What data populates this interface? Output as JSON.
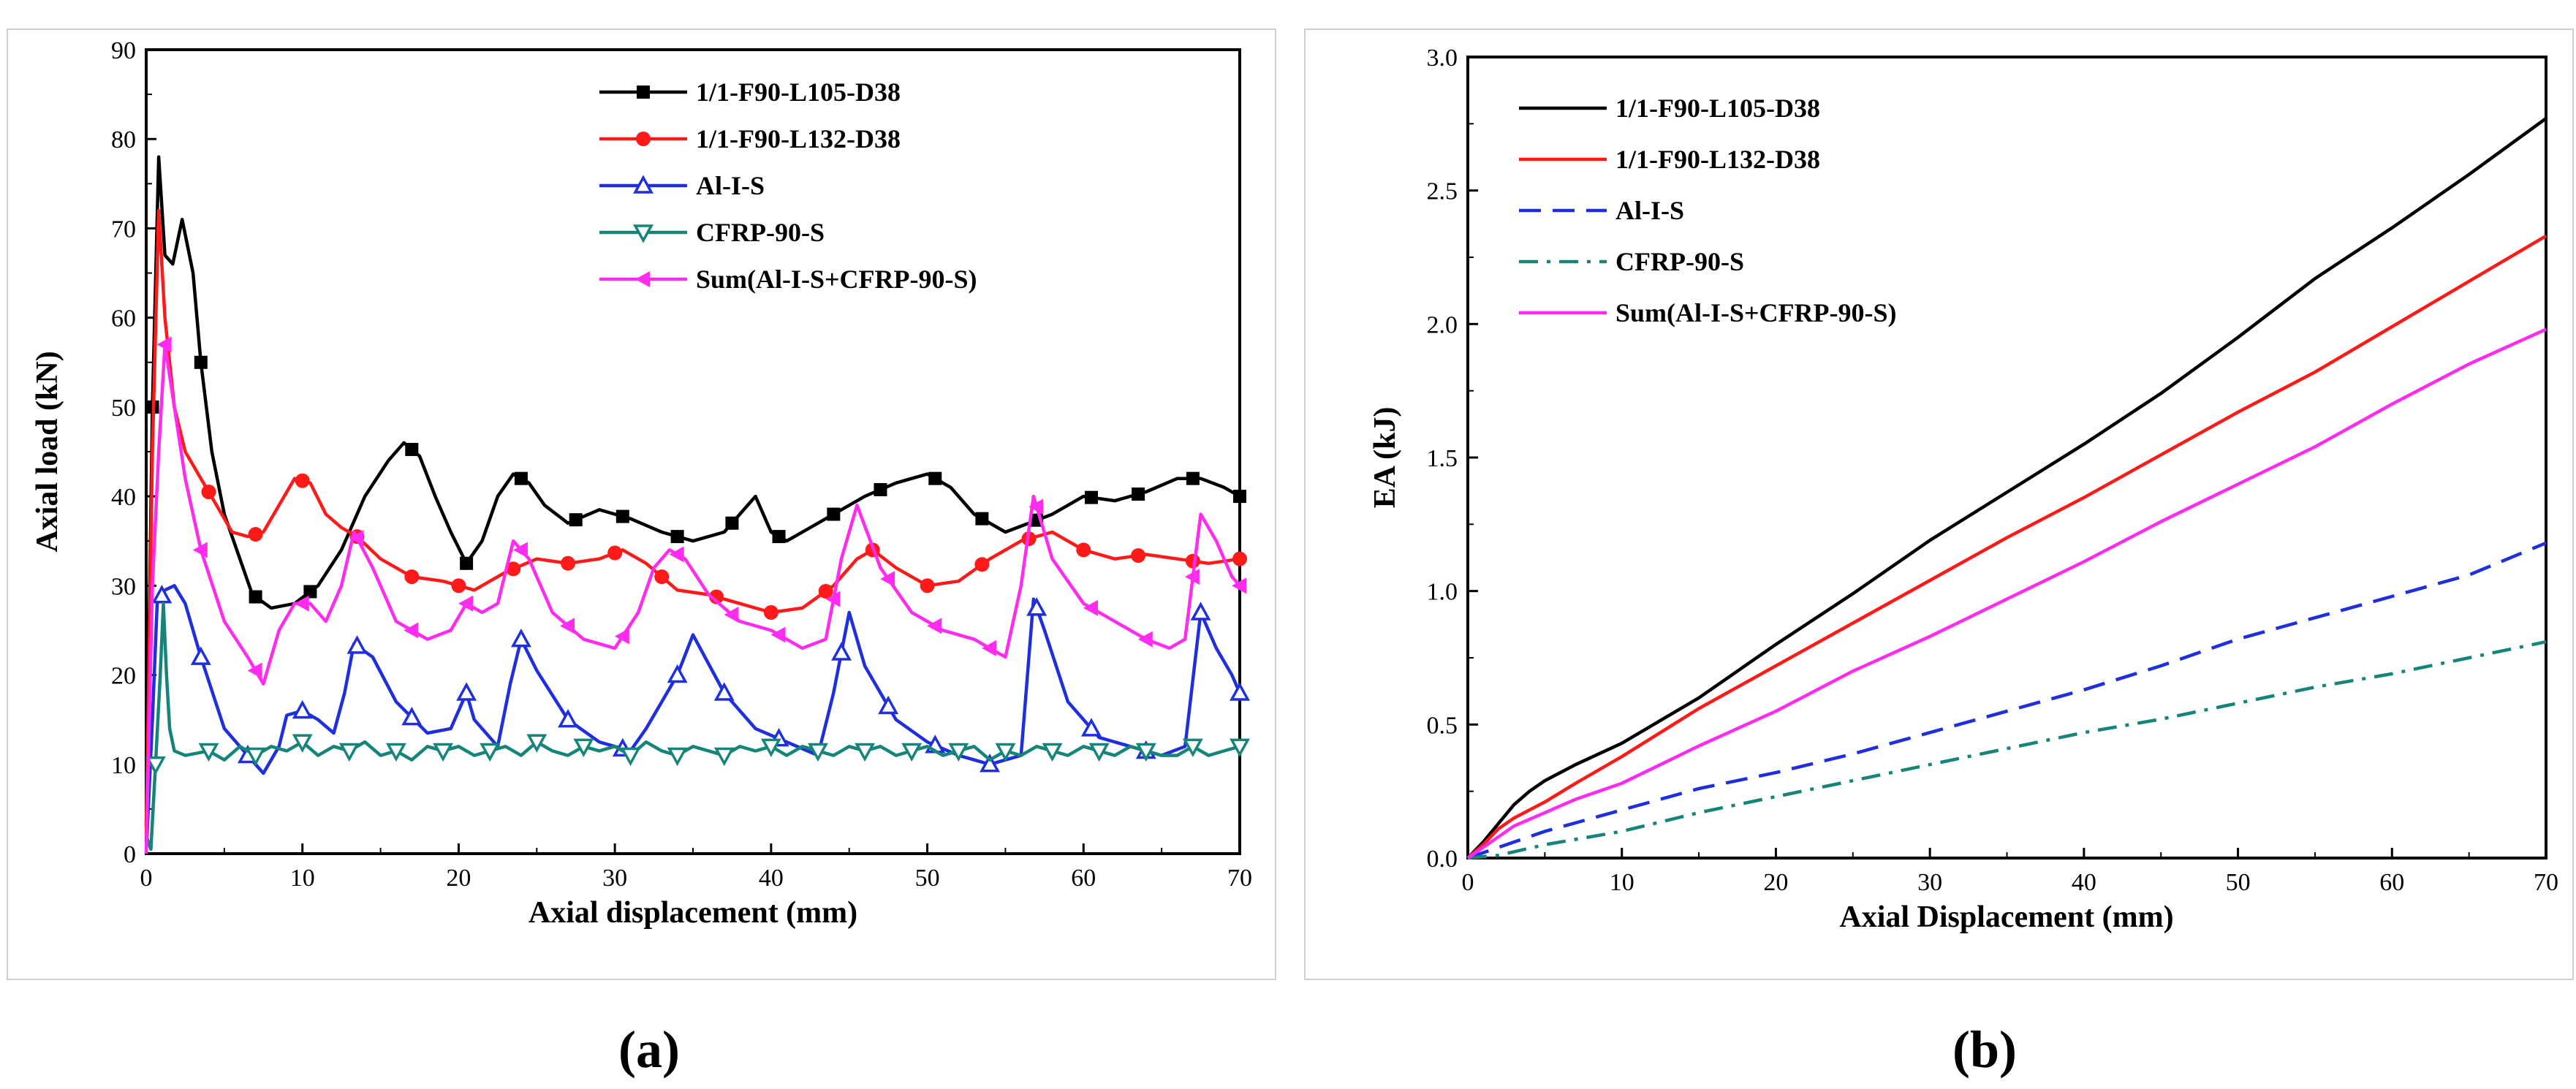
{
  "colors": {
    "black": "#000000",
    "red": "#ff1a1a",
    "blue": "#1f2fdd",
    "teal": "#15857a",
    "magenta": "#ff2cf0"
  },
  "chart_data": [
    {
      "type": "line",
      "caption": "(a)",
      "xlabel": "Axial displacement (mm)",
      "ylabel": "Axial load (kN)",
      "xlim": [
        0,
        70
      ],
      "ylim": [
        0,
        90
      ],
      "xticks": [
        "0",
        "10",
        "20",
        "30",
        "40",
        "50",
        "60",
        "70"
      ],
      "yticks": [
        "0",
        "10",
        "20",
        "30",
        "40",
        "50",
        "60",
        "70",
        "80",
        "90"
      ],
      "legend_position": "top-right",
      "series": [
        {
          "name": "1/1-F90-L105-D38",
          "color": "#000000",
          "marker": "square",
          "x": [
            0,
            0.4,
            0.8,
            1.2,
            1.7,
            2.3,
            3.0,
            3.5,
            4.2,
            5.0,
            6.0,
            6.8,
            8.0,
            9.5,
            11.0,
            12.5,
            14.0,
            15.5,
            16.5,
            17.5,
            18.5,
            19.5,
            20.5,
            21.5,
            22.5,
            23.5,
            24.5,
            25.5,
            27.0,
            29.0,
            31.0,
            33.0,
            35.0,
            37.0,
            39.0,
            40.0,
            41.0,
            42.5,
            44.0,
            46.0,
            48.0,
            50.0,
            51.5,
            53.0,
            55.0,
            56.5,
            58.0,
            60.0,
            62.0,
            64.0,
            66.0,
            67.5,
            69.0,
            70.0
          ],
          "y": [
            3,
            50,
            78,
            67,
            66,
            71,
            65,
            55,
            45,
            38,
            33,
            29,
            27.5,
            28,
            30,
            34,
            40,
            44,
            46,
            44.5,
            40,
            36,
            32.5,
            35,
            40,
            42.5,
            41.5,
            39,
            37,
            38.5,
            37.5,
            36,
            35,
            36,
            40,
            36,
            35,
            36.5,
            38,
            40,
            41.5,
            42.5,
            41,
            38,
            36,
            37,
            38,
            40,
            39.5,
            40.5,
            42,
            42,
            41,
            40
          ],
          "marker_x": [
            0.4,
            3.5,
            7.0,
            10.5,
            17.0,
            20.5,
            24.0,
            27.5,
            30.5,
            34.0,
            37.5,
            40.5,
            44.0,
            47.0,
            50.5,
            53.5,
            57.0,
            60.5,
            63.5,
            67.0,
            70.0
          ]
        },
        {
          "name": "1/1-F90-L132-D38",
          "color": "#ff1a1a",
          "marker": "circle",
          "x": [
            0,
            0.4,
            0.8,
            1.2,
            1.8,
            2.5,
            3.5,
            4.5,
            5.5,
            6.5,
            7.5,
            8.5,
            9.5,
            10.5,
            11.5,
            12.5,
            13.5,
            15.0,
            17.0,
            19.0,
            21.0,
            23.0,
            25.0,
            27.0,
            29.0,
            30.5,
            32.0,
            34.0,
            36.0,
            38.0,
            40.0,
            42.0,
            44.0,
            45.5,
            46.5,
            48.0,
            50.0,
            52.0,
            54.0,
            56.0,
            58.0,
            60.0,
            62.0,
            64.0,
            66.0,
            68.0,
            70.0
          ],
          "y": [
            2,
            45,
            72,
            60,
            50,
            45,
            42,
            39,
            36,
            35.5,
            36,
            39,
            42,
            41.5,
            38,
            36.5,
            35.5,
            33,
            31,
            30.5,
            29.5,
            31.5,
            33,
            32.5,
            33,
            34,
            32.5,
            29.5,
            29,
            28,
            27,
            27.5,
            30,
            33,
            34,
            32,
            30,
            30.5,
            33,
            35,
            36,
            34,
            33,
            33.5,
            33,
            32.5,
            33
          ],
          "marker_x": [
            4.0,
            7.0,
            10.0,
            13.5,
            17.0,
            20.0,
            23.5,
            27.0,
            30.0,
            33.0,
            36.5,
            40.0,
            43.5,
            46.5,
            50.0,
            53.5,
            56.5,
            60.0,
            63.5,
            67.0,
            70.0
          ]
        },
        {
          "name": "Al-I-S",
          "color": "#1f2fdd",
          "marker": "triangle-up",
          "x": [
            0,
            0.4,
            0.7,
            1.2,
            1.8,
            2.5,
            3.5,
            5.0,
            6.5,
            7.5,
            8.5,
            9.0,
            10.0,
            11.0,
            12.0,
            12.7,
            13.3,
            14.5,
            16.0,
            18.0,
            19.5,
            20.5,
            21.0,
            22.5,
            23.3,
            24.0,
            25.0,
            27.0,
            29.0,
            31.0,
            32.0,
            33.0,
            34.0,
            35.0,
            37.0,
            39.0,
            41.0,
            43.0,
            44.0,
            45.0,
            46.0,
            48.0,
            50.0,
            52.0,
            54.0,
            56.0,
            56.8,
            57.5,
            59.0,
            61.0,
            63.0,
            65.0,
            66.5,
            67.5,
            68.5,
            69.5,
            70.0
          ],
          "y": [
            0,
            15,
            28,
            29.5,
            30,
            28,
            22,
            14,
            11,
            9,
            12,
            15.5,
            16,
            15,
            13.5,
            18,
            23.5,
            22,
            17,
            13.5,
            14,
            18,
            15,
            12,
            19,
            24,
            20.5,
            15,
            12.5,
            11.5,
            14,
            17,
            20,
            24.5,
            18,
            14,
            12.5,
            11,
            18,
            27,
            21,
            15,
            12.5,
            11,
            10,
            11,
            28.5,
            25,
            17,
            13,
            12,
            11,
            12,
            27,
            23,
            20,
            18
          ],
          "marker_x": [
            1.0,
            3.5,
            6.5,
            10.0,
            13.5,
            17.0,
            20.5,
            24.0,
            27.0,
            30.5,
            34.0,
            37.0,
            40.5,
            44.5,
            47.5,
            50.5,
            54.0,
            57.0,
            60.5,
            64.0,
            67.5,
            70.0
          ]
        },
        {
          "name": "CFRP-90-S",
          "color": "#15857a",
          "marker": "triangle-down",
          "x": [
            0,
            0.3,
            0.6,
            0.9,
            1.1,
            1.3,
            1.5,
            1.8,
            2.5,
            4,
            5,
            6,
            7,
            8,
            9,
            10,
            11,
            12,
            13,
            14,
            15,
            16,
            17,
            18,
            19,
            20,
            21,
            22,
            23,
            24,
            25,
            26,
            27,
            28,
            29,
            30,
            31,
            32,
            33,
            34,
            35,
            36,
            37,
            38,
            39,
            40,
            41,
            42,
            43,
            44,
            45,
            46,
            47,
            48,
            49,
            50,
            51,
            52,
            53,
            54,
            55,
            56,
            57,
            58,
            59,
            60,
            61,
            62,
            63,
            64,
            65,
            66,
            67,
            68,
            69,
            70
          ],
          "y": [
            2,
            0.5,
            10,
            20,
            28,
            20,
            14,
            11.5,
            11,
            11.5,
            10.5,
            12,
            11,
            12,
            11.5,
            12.5,
            11,
            12,
            11.5,
            12.5,
            11,
            11.5,
            10.5,
            12,
            11.5,
            12,
            11,
            11.5,
            12,
            11,
            12.5,
            11.5,
            11,
            12,
            11.5,
            12,
            11,
            12.5,
            11.5,
            11,
            12,
            11.5,
            11,
            12,
            11.5,
            12,
            11,
            12,
            11.5,
            11,
            12,
            11.5,
            12,
            11,
            11.5,
            12,
            11,
            11.5,
            12,
            10.5,
            11.5,
            11,
            12,
            11.5,
            11,
            12,
            11.5,
            11,
            12,
            11.5,
            11,
            11,
            12,
            11,
            11.5,
            12
          ],
          "marker_x": [
            0.6,
            4.0,
            7.0,
            10.0,
            13.0,
            16.0,
            19.0,
            22.0,
            25.0,
            28.0,
            31.0,
            34.0,
            37.0,
            40.0,
            43.0,
            46.0,
            49.0,
            52.0,
            55.0,
            58.0,
            61.0,
            64.0,
            67.0,
            70.0
          ]
        },
        {
          "name": "Sum(Al-I-S+CFRP-90-S)",
          "color": "#ff2cf0",
          "marker": "triangle-left",
          "x": [
            0,
            0.4,
            0.8,
            1.2,
            1.8,
            2.5,
            3.5,
            5.0,
            6.5,
            7.5,
            8.5,
            9.5,
            10.5,
            11.5,
            12.5,
            13.3,
            14.5,
            16.0,
            18.0,
            19.5,
            20.5,
            21.5,
            22.5,
            23.5,
            24.5,
            26.0,
            28.0,
            30.0,
            31.5,
            32.5,
            33.5,
            34.5,
            36.0,
            38.0,
            40.0,
            42.0,
            43.5,
            44.5,
            45.5,
            47.0,
            49.0,
            51.0,
            53.0,
            55.0,
            56.0,
            56.8,
            58.0,
            60.0,
            62.0,
            64.0,
            65.5,
            66.5,
            67.5,
            68.5,
            69.5,
            70.0
          ],
          "y": [
            0,
            30,
            45,
            57,
            50,
            42,
            34,
            26,
            22,
            19,
            25,
            28,
            28,
            26,
            30,
            36,
            32,
            26,
            24,
            25,
            28,
            27,
            28,
            35,
            33,
            27,
            24,
            23,
            27,
            32,
            34,
            33,
            29,
            26,
            25,
            23,
            24,
            33,
            39,
            32,
            27,
            25,
            24,
            22,
            30,
            40,
            33,
            28,
            26,
            24,
            23,
            24,
            38,
            35,
            31,
            30
          ],
          "marker_x": [
            1.2,
            3.5,
            7.0,
            10.0,
            13.5,
            17.0,
            20.5,
            24.0,
            27.0,
            30.5,
            34.0,
            37.5,
            40.5,
            44.0,
            47.5,
            50.5,
            54.0,
            57.0,
            60.5,
            64.0,
            67.0,
            70.0
          ]
        }
      ]
    },
    {
      "type": "line",
      "caption": "(b)",
      "xlabel": "Axial Displacement (mm)",
      "ylabel": "EA (kJ)",
      "xlim": [
        0,
        70
      ],
      "ylim": [
        0,
        3.0
      ],
      "xticks": [
        "0",
        "10",
        "20",
        "30",
        "40",
        "50",
        "60",
        "70"
      ],
      "yticks": [
        "0.0",
        "0.5",
        "1.0",
        "1.5",
        "2.0",
        "2.5",
        "3.0"
      ],
      "legend_position": "top-left",
      "series": [
        {
          "name": "1/1-F90-L105-D38",
          "color": "#000000",
          "dash": "solid",
          "x": [
            0,
            1,
            2,
            3,
            4,
            5,
            7,
            10,
            15,
            20,
            25,
            30,
            35,
            40,
            45,
            50,
            55,
            60,
            65,
            70
          ],
          "y": [
            0,
            0.06,
            0.13,
            0.2,
            0.25,
            0.29,
            0.35,
            0.43,
            0.6,
            0.8,
            0.99,
            1.19,
            1.37,
            1.55,
            1.74,
            1.95,
            2.17,
            2.36,
            2.56,
            2.77
          ]
        },
        {
          "name": "1/1-F90-L132-D38",
          "color": "#ff1a1a",
          "dash": "solid",
          "x": [
            0,
            1,
            2,
            3,
            5,
            7,
            10,
            15,
            20,
            25,
            30,
            35,
            40,
            45,
            50,
            55,
            60,
            65,
            70
          ],
          "y": [
            0,
            0.05,
            0.11,
            0.15,
            0.21,
            0.28,
            0.38,
            0.56,
            0.72,
            0.88,
            1.04,
            1.2,
            1.35,
            1.51,
            1.67,
            1.82,
            1.99,
            2.16,
            2.33
          ]
        },
        {
          "name": "Al-I-S",
          "color": "#1f2fdd",
          "dash": "long-dash",
          "x": [
            0,
            2,
            5,
            10,
            15,
            20,
            25,
            30,
            35,
            40,
            45,
            50,
            55,
            60,
            65,
            70
          ],
          "y": [
            0,
            0.04,
            0.1,
            0.18,
            0.26,
            0.32,
            0.39,
            0.47,
            0.55,
            0.63,
            0.72,
            0.82,
            0.9,
            0.98,
            1.06,
            1.18
          ]
        },
        {
          "name": "CFRP-90-S",
          "color": "#15857a",
          "dash": "dash-dot",
          "x": [
            0,
            2,
            5,
            10,
            15,
            20,
            25,
            30,
            35,
            40,
            45,
            50,
            55,
            60,
            65,
            70
          ],
          "y": [
            0,
            0.01,
            0.05,
            0.1,
            0.17,
            0.23,
            0.29,
            0.35,
            0.41,
            0.47,
            0.52,
            0.58,
            0.64,
            0.69,
            0.75,
            0.81
          ]
        },
        {
          "name": "Sum(Al-I-S+CFRP-90-S)",
          "color": "#ff2cf0",
          "dash": "solid",
          "x": [
            0,
            1,
            2,
            3,
            5,
            7,
            10,
            15,
            20,
            25,
            30,
            35,
            40,
            45,
            50,
            55,
            60,
            65,
            70
          ],
          "y": [
            0,
            0.04,
            0.08,
            0.12,
            0.17,
            0.22,
            0.28,
            0.42,
            0.55,
            0.7,
            0.83,
            0.97,
            1.11,
            1.26,
            1.4,
            1.54,
            1.7,
            1.85,
            1.98
          ]
        }
      ]
    }
  ]
}
